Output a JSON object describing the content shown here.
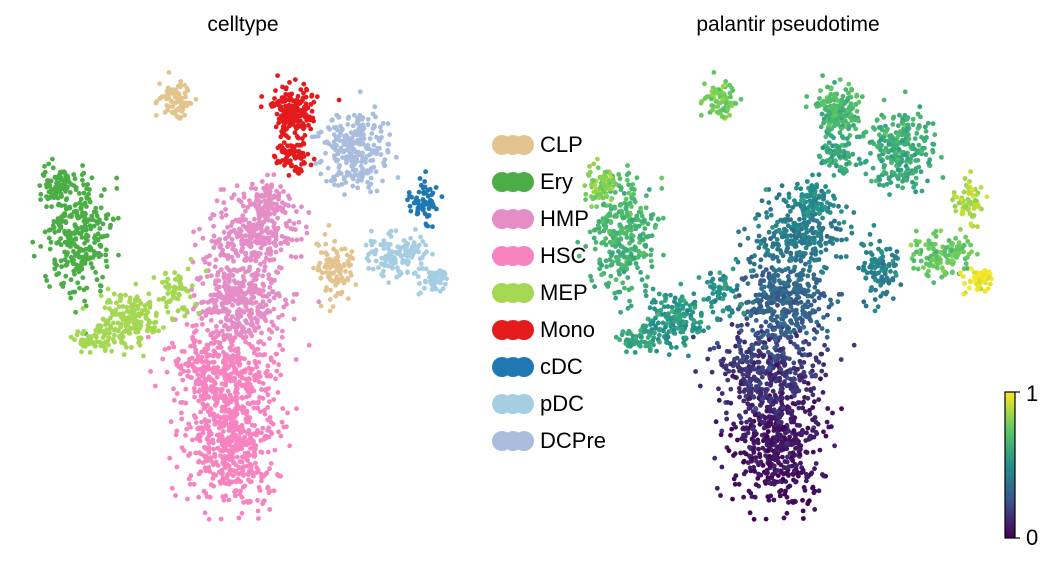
{
  "chart_data": [
    {
      "type": "scatter",
      "title": "celltype",
      "coloring": "categorical",
      "axes_visible": false,
      "grid": false,
      "legend_placement": "right",
      "legend": [
        {
          "name": "CLP",
          "color": "#e4c48e"
        },
        {
          "name": "Ery",
          "color": "#4bae45"
        },
        {
          "name": "HMP",
          "color": "#e58dc6"
        },
        {
          "name": "HSC",
          "color": "#f784c0"
        },
        {
          "name": "MEP",
          "color": "#a5d852"
        },
        {
          "name": "Mono",
          "color": "#e41a1c"
        },
        {
          "name": "cDC",
          "color": "#1f78b4"
        },
        {
          "name": "pDC",
          "color": "#a6cee3"
        },
        {
          "name": "DCPre",
          "color": "#a9bddd"
        }
      ]
    },
    {
      "type": "scatter",
      "title": "palantir pseudotime",
      "coloring": "continuous",
      "colormap": "viridis",
      "axes_visible": false,
      "grid": false,
      "colorbar": {
        "min": 0,
        "max": 1,
        "ticks": [
          "0",
          "1"
        ],
        "placement": "bottom-right"
      }
    }
  ]
}
